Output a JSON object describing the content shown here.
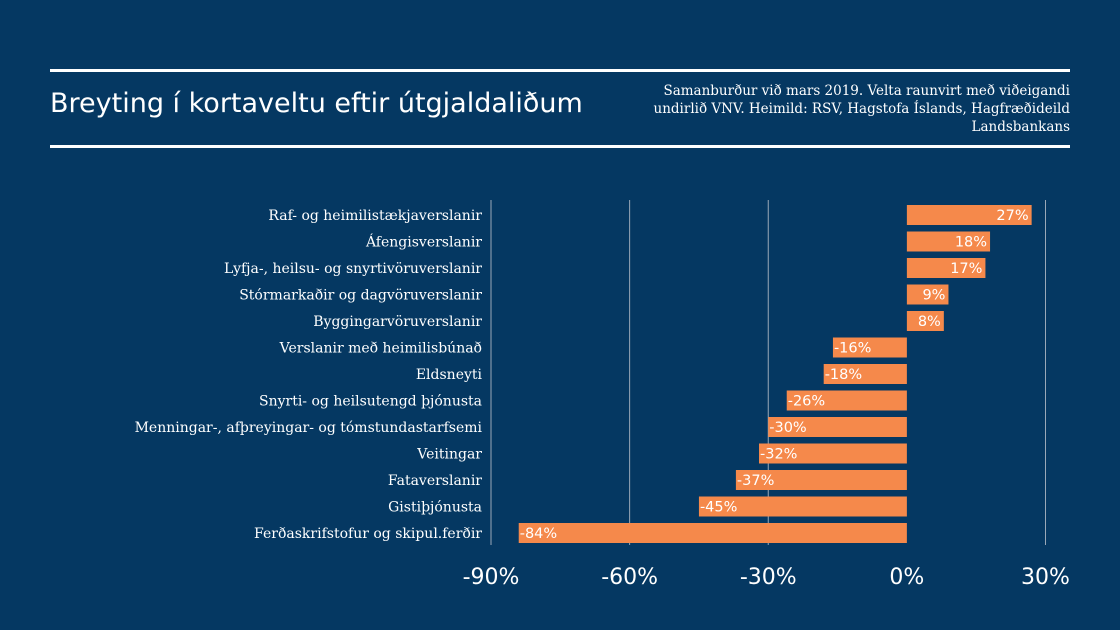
{
  "title": "Breyting í kortaveltu eftir útgjaldaliðum",
  "subtitle": "Samanburður við mars 2019. Velta raunvirt með viðeigandi undirlið VNV. Heimild: RSV, Hagstofa Íslands, Hagfræðideild Landsbankans",
  "colors": {
    "background": "#053862",
    "bar": "#f5894b",
    "grid": "#9aa8b8"
  },
  "chart_data": {
    "type": "bar",
    "orientation": "horizontal",
    "categories": [
      "Raf- og heimilistækjaverslanir",
      "Áfengisverslanir",
      "Lyfja-, heilsu- og snyrtivöruverslanir",
      "Stórmarkaðir og dagvöruverslanir",
      "Byggingarvöruverslanir",
      "Verslanir með heimilisbúnað",
      "Eldsneyti",
      "Snyrti- og heilsutengd þjónusta",
      "Menningar-, afþreyingar- og tómstundastarfsemi",
      "Veitingar",
      "Fataverslanir",
      "Gistiþjónusta",
      "Ferðaskrifstofur og skipul.ferðir"
    ],
    "values": [
      27,
      18,
      17,
      9,
      8,
      -16,
      -18,
      -26,
      -30,
      -32,
      -37,
      -45,
      -84
    ],
    "data_labels": [
      "27%",
      "18%",
      "17%",
      "9%",
      "8%",
      "-16%",
      "-18%",
      "-26%",
      "-30%",
      "-32%",
      "-37%",
      "-45%",
      "-84%"
    ],
    "xlim": [
      -90,
      30
    ],
    "xticks": [
      -90,
      -60,
      -30,
      0,
      30
    ],
    "xtick_labels": [
      "-90%",
      "-60%",
      "-30%",
      "0%",
      "30%"
    ],
    "grid": "vertical"
  }
}
